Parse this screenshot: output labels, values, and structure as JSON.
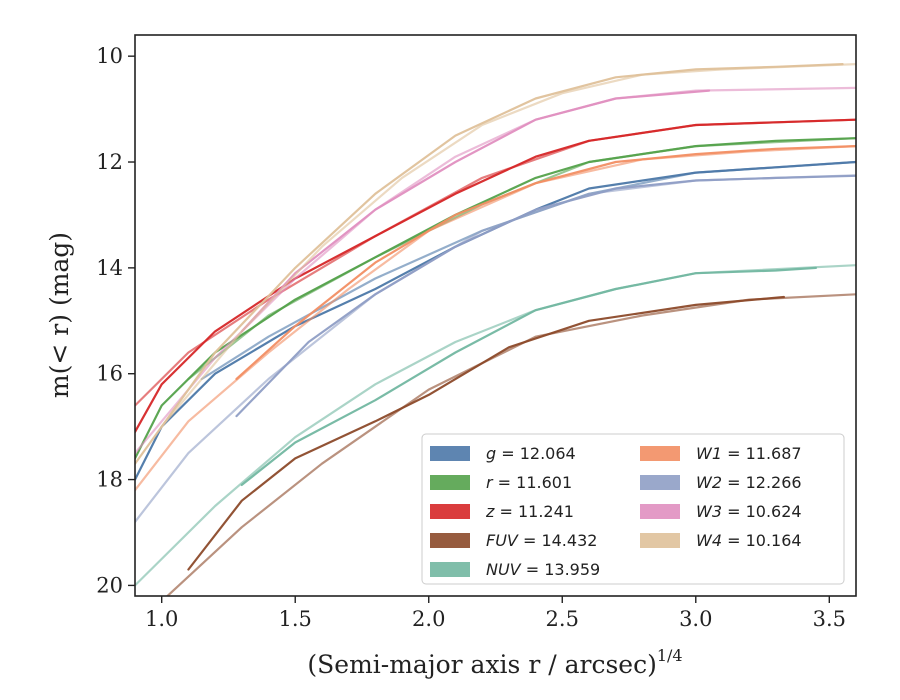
{
  "chart_data": {
    "type": "line",
    "xlabel": "(Semi-major axis r / arcsec)",
    "xlabel_exponent": "1/4",
    "ylabel": "m(< r) (mag)",
    "xlim": [
      0.9,
      3.6
    ],
    "ylim": [
      20.2,
      9.6
    ],
    "y_inverted": true,
    "xticks": [
      "1.0",
      "1.5",
      "2.0",
      "2.5",
      "3.0",
      "3.5"
    ],
    "yticks": [
      "10",
      "12",
      "14",
      "16",
      "18",
      "20"
    ],
    "xtick_values": [
      1.0,
      1.5,
      2.0,
      2.5,
      3.0,
      3.5
    ],
    "ytick_values": [
      10,
      12,
      14,
      16,
      18,
      20
    ],
    "grid": false,
    "legend_position": "lower-right",
    "series": [
      {
        "name": "g = 12.064",
        "color": "#4c78a8",
        "x": [
          0.9,
          1.0,
          1.2,
          1.5,
          1.8,
          2.1,
          2.4,
          2.6,
          3.0,
          3.3,
          3.6
        ],
        "y": [
          18.0,
          17.0,
          16.0,
          15.1,
          14.4,
          13.6,
          12.9,
          12.5,
          12.2,
          12.1,
          12.0
        ],
        "model_x": [
          1.15,
          1.4,
          1.8,
          2.2,
          2.6,
          3.0,
          3.6
        ],
        "model_y": [
          16.1,
          15.3,
          14.2,
          13.3,
          12.6,
          12.2,
          12.0
        ]
      },
      {
        "name": "r = 11.601",
        "color": "#54a24b",
        "x": [
          0.9,
          1.0,
          1.2,
          1.5,
          1.8,
          2.1,
          2.4,
          2.6,
          3.0,
          3.3,
          3.6
        ],
        "y": [
          17.6,
          16.6,
          15.6,
          14.6,
          13.8,
          13.0,
          12.3,
          12.0,
          11.7,
          11.6,
          11.55
        ],
        "model_x": [
          1.1,
          1.4,
          1.8,
          2.2,
          2.6,
          3.0,
          3.6
        ],
        "model_y": [
          16.1,
          14.9,
          13.8,
          12.8,
          12.0,
          11.7,
          11.55
        ]
      },
      {
        "name": "z = 11.241",
        "color": "#d62728",
        "x": [
          0.9,
          1.0,
          1.2,
          1.5,
          1.8,
          2.1,
          2.4,
          2.6,
          3.0,
          3.3,
          3.6
        ],
        "y": [
          17.1,
          16.2,
          15.2,
          14.2,
          13.4,
          12.6,
          11.9,
          11.6,
          11.3,
          11.25,
          11.2
        ],
        "model_x": [
          0.9,
          1.1,
          1.4,
          1.8,
          2.2,
          2.6,
          3.0,
          3.6
        ],
        "model_y": [
          16.6,
          15.6,
          14.6,
          13.4,
          12.3,
          11.6,
          11.3,
          11.2
        ]
      },
      {
        "name": "FUV = 14.432",
        "color": "#8c4a2a",
        "x": [
          1.1,
          1.3,
          1.5,
          1.8,
          2.0,
          2.3,
          2.6,
          3.0,
          3.33
        ],
        "y": [
          19.7,
          18.4,
          17.6,
          16.9,
          16.4,
          15.5,
          15.0,
          14.7,
          14.55
        ],
        "model_x": [
          1.0,
          1.3,
          1.6,
          2.0,
          2.4,
          2.8,
          3.2,
          3.6
        ],
        "model_y": [
          20.3,
          18.9,
          17.7,
          16.3,
          15.3,
          14.9,
          14.6,
          14.5
        ]
      },
      {
        "name": "NUV = 13.959",
        "color": "#72b7a1",
        "x": [
          1.3,
          1.5,
          1.8,
          2.1,
          2.4,
          2.7,
          3.0,
          3.3,
          3.45
        ],
        "y": [
          18.1,
          17.3,
          16.5,
          15.6,
          14.8,
          14.4,
          14.1,
          14.05,
          14.0
        ],
        "model_x": [
          0.9,
          1.2,
          1.5,
          1.8,
          2.1,
          2.4,
          2.7,
          3.0,
          3.6
        ],
        "model_y": [
          20.0,
          18.5,
          17.2,
          16.2,
          15.4,
          14.8,
          14.4,
          14.1,
          13.95
        ]
      },
      {
        "name": "W1 = 11.687",
        "color": "#f28e63",
        "x": [
          1.28,
          1.5,
          1.8,
          2.1,
          2.4,
          2.7,
          3.0,
          3.3,
          3.6
        ],
        "y": [
          16.1,
          15.1,
          13.9,
          13.0,
          12.4,
          12.0,
          11.85,
          11.75,
          11.7
        ],
        "model_x": [
          0.9,
          1.1,
          1.4,
          1.7,
          2.0,
          2.4,
          2.8,
          3.2,
          3.6
        ],
        "model_y": [
          18.2,
          16.9,
          15.6,
          14.4,
          13.3,
          12.4,
          11.95,
          11.8,
          11.7
        ]
      },
      {
        "name": "W2 = 12.266",
        "color": "#8f9ec5",
        "x": [
          1.28,
          1.55,
          1.8,
          2.1,
          2.4,
          2.7,
          3.0,
          3.3,
          3.6
        ],
        "y": [
          16.8,
          15.4,
          14.5,
          13.6,
          12.9,
          12.5,
          12.35,
          12.3,
          12.26
        ],
        "model_x": [
          0.9,
          1.1,
          1.4,
          1.8,
          2.2,
          2.6,
          3.0,
          3.6
        ],
        "model_y": [
          18.8,
          17.5,
          16.1,
          14.5,
          13.3,
          12.6,
          12.35,
          12.25
        ]
      },
      {
        "name": "W3 = 10.624",
        "color": "#e08fc0",
        "x": [
          1.3,
          1.5,
          1.8,
          2.1,
          2.4,
          2.7,
          3.05
        ],
        "y": [
          15.2,
          14.1,
          12.9,
          12.0,
          11.2,
          10.8,
          10.65
        ],
        "model_x": [
          0.9,
          1.2,
          1.5,
          1.8,
          2.1,
          2.4,
          2.7,
          3.0,
          3.6
        ],
        "model_y": [
          17.5,
          15.7,
          14.2,
          12.9,
          11.9,
          11.2,
          10.8,
          10.65,
          10.6
        ]
      },
      {
        "name": "W4 = 10.164",
        "color": "#dfc19a",
        "x": [
          0.9,
          1.2,
          1.5,
          1.8,
          2.1,
          2.4,
          2.7,
          3.0,
          3.3,
          3.55
        ],
        "y": [
          17.7,
          15.6,
          14.0,
          12.6,
          11.5,
          10.8,
          10.4,
          10.25,
          10.2,
          10.15
        ],
        "model_x": [
          1.0,
          1.3,
          1.6,
          1.9,
          2.2,
          2.5,
          2.8,
          3.1,
          3.6
        ],
        "model_y": [
          17.0,
          15.2,
          13.6,
          12.3,
          11.3,
          10.7,
          10.35,
          10.25,
          10.15
        ]
      }
    ]
  }
}
